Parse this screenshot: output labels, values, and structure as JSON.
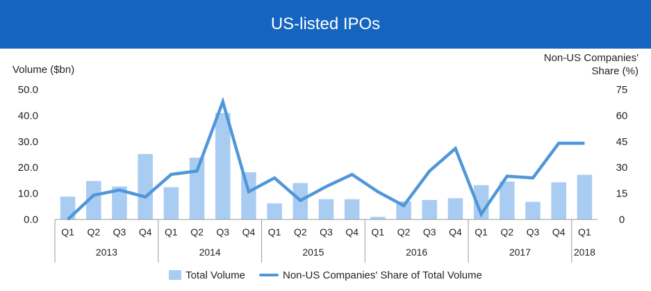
{
  "title": "US-listed IPOs",
  "chart_data": {
    "type": "bar+line",
    "left_axis_label": "Volume ($bn)",
    "right_axis_label_line1": "Non-US Companies'",
    "right_axis_label_line2": "Share (%)",
    "left_ylim": [
      0,
      50
    ],
    "left_ticks": [
      "0.0",
      "10.0",
      "20.0",
      "30.0",
      "40.0",
      "50.0"
    ],
    "right_ylim": [
      0,
      75
    ],
    "right_ticks": [
      "0",
      "15",
      "30",
      "45",
      "60",
      "75"
    ],
    "quarters": [
      "Q1",
      "Q2",
      "Q3",
      "Q4",
      "Q1",
      "Q2",
      "Q3",
      "Q4",
      "Q1",
      "Q2",
      "Q3",
      "Q4",
      "Q1",
      "Q2",
      "Q3",
      "Q4",
      "Q1",
      "Q2",
      "Q3",
      "Q4",
      "Q1"
    ],
    "years": [
      {
        "label": "2013",
        "start": 0,
        "count": 4
      },
      {
        "label": "2014",
        "start": 4,
        "count": 4
      },
      {
        "label": "2015",
        "start": 8,
        "count": 4
      },
      {
        "label": "2016",
        "start": 12,
        "count": 4
      },
      {
        "label": "2017",
        "start": 16,
        "count": 4
      },
      {
        "label": "2018",
        "start": 20,
        "count": 1
      }
    ],
    "series": [
      {
        "name": "Total Volume",
        "type": "bar",
        "axis": "left",
        "color": "#a9cdf2",
        "values": [
          8.8,
          14.8,
          12.7,
          25.2,
          12.4,
          23.8,
          41.0,
          18.2,
          6.2,
          14.0,
          7.8,
          7.8,
          1.0,
          7.0,
          7.5,
          8.2,
          13.2,
          14.6,
          6.8,
          14.3,
          17.2
        ]
      },
      {
        "name": "Non-US Companies' Share of Total Volume",
        "type": "line",
        "axis": "right",
        "color": "#4f97d9",
        "values": [
          0,
          14,
          17,
          13,
          26,
          28,
          68,
          16,
          24,
          11,
          19,
          26,
          16,
          8,
          28,
          41,
          3,
          25,
          24,
          44,
          44
        ]
      }
    ],
    "legend_position": "bottom",
    "grid": false
  }
}
